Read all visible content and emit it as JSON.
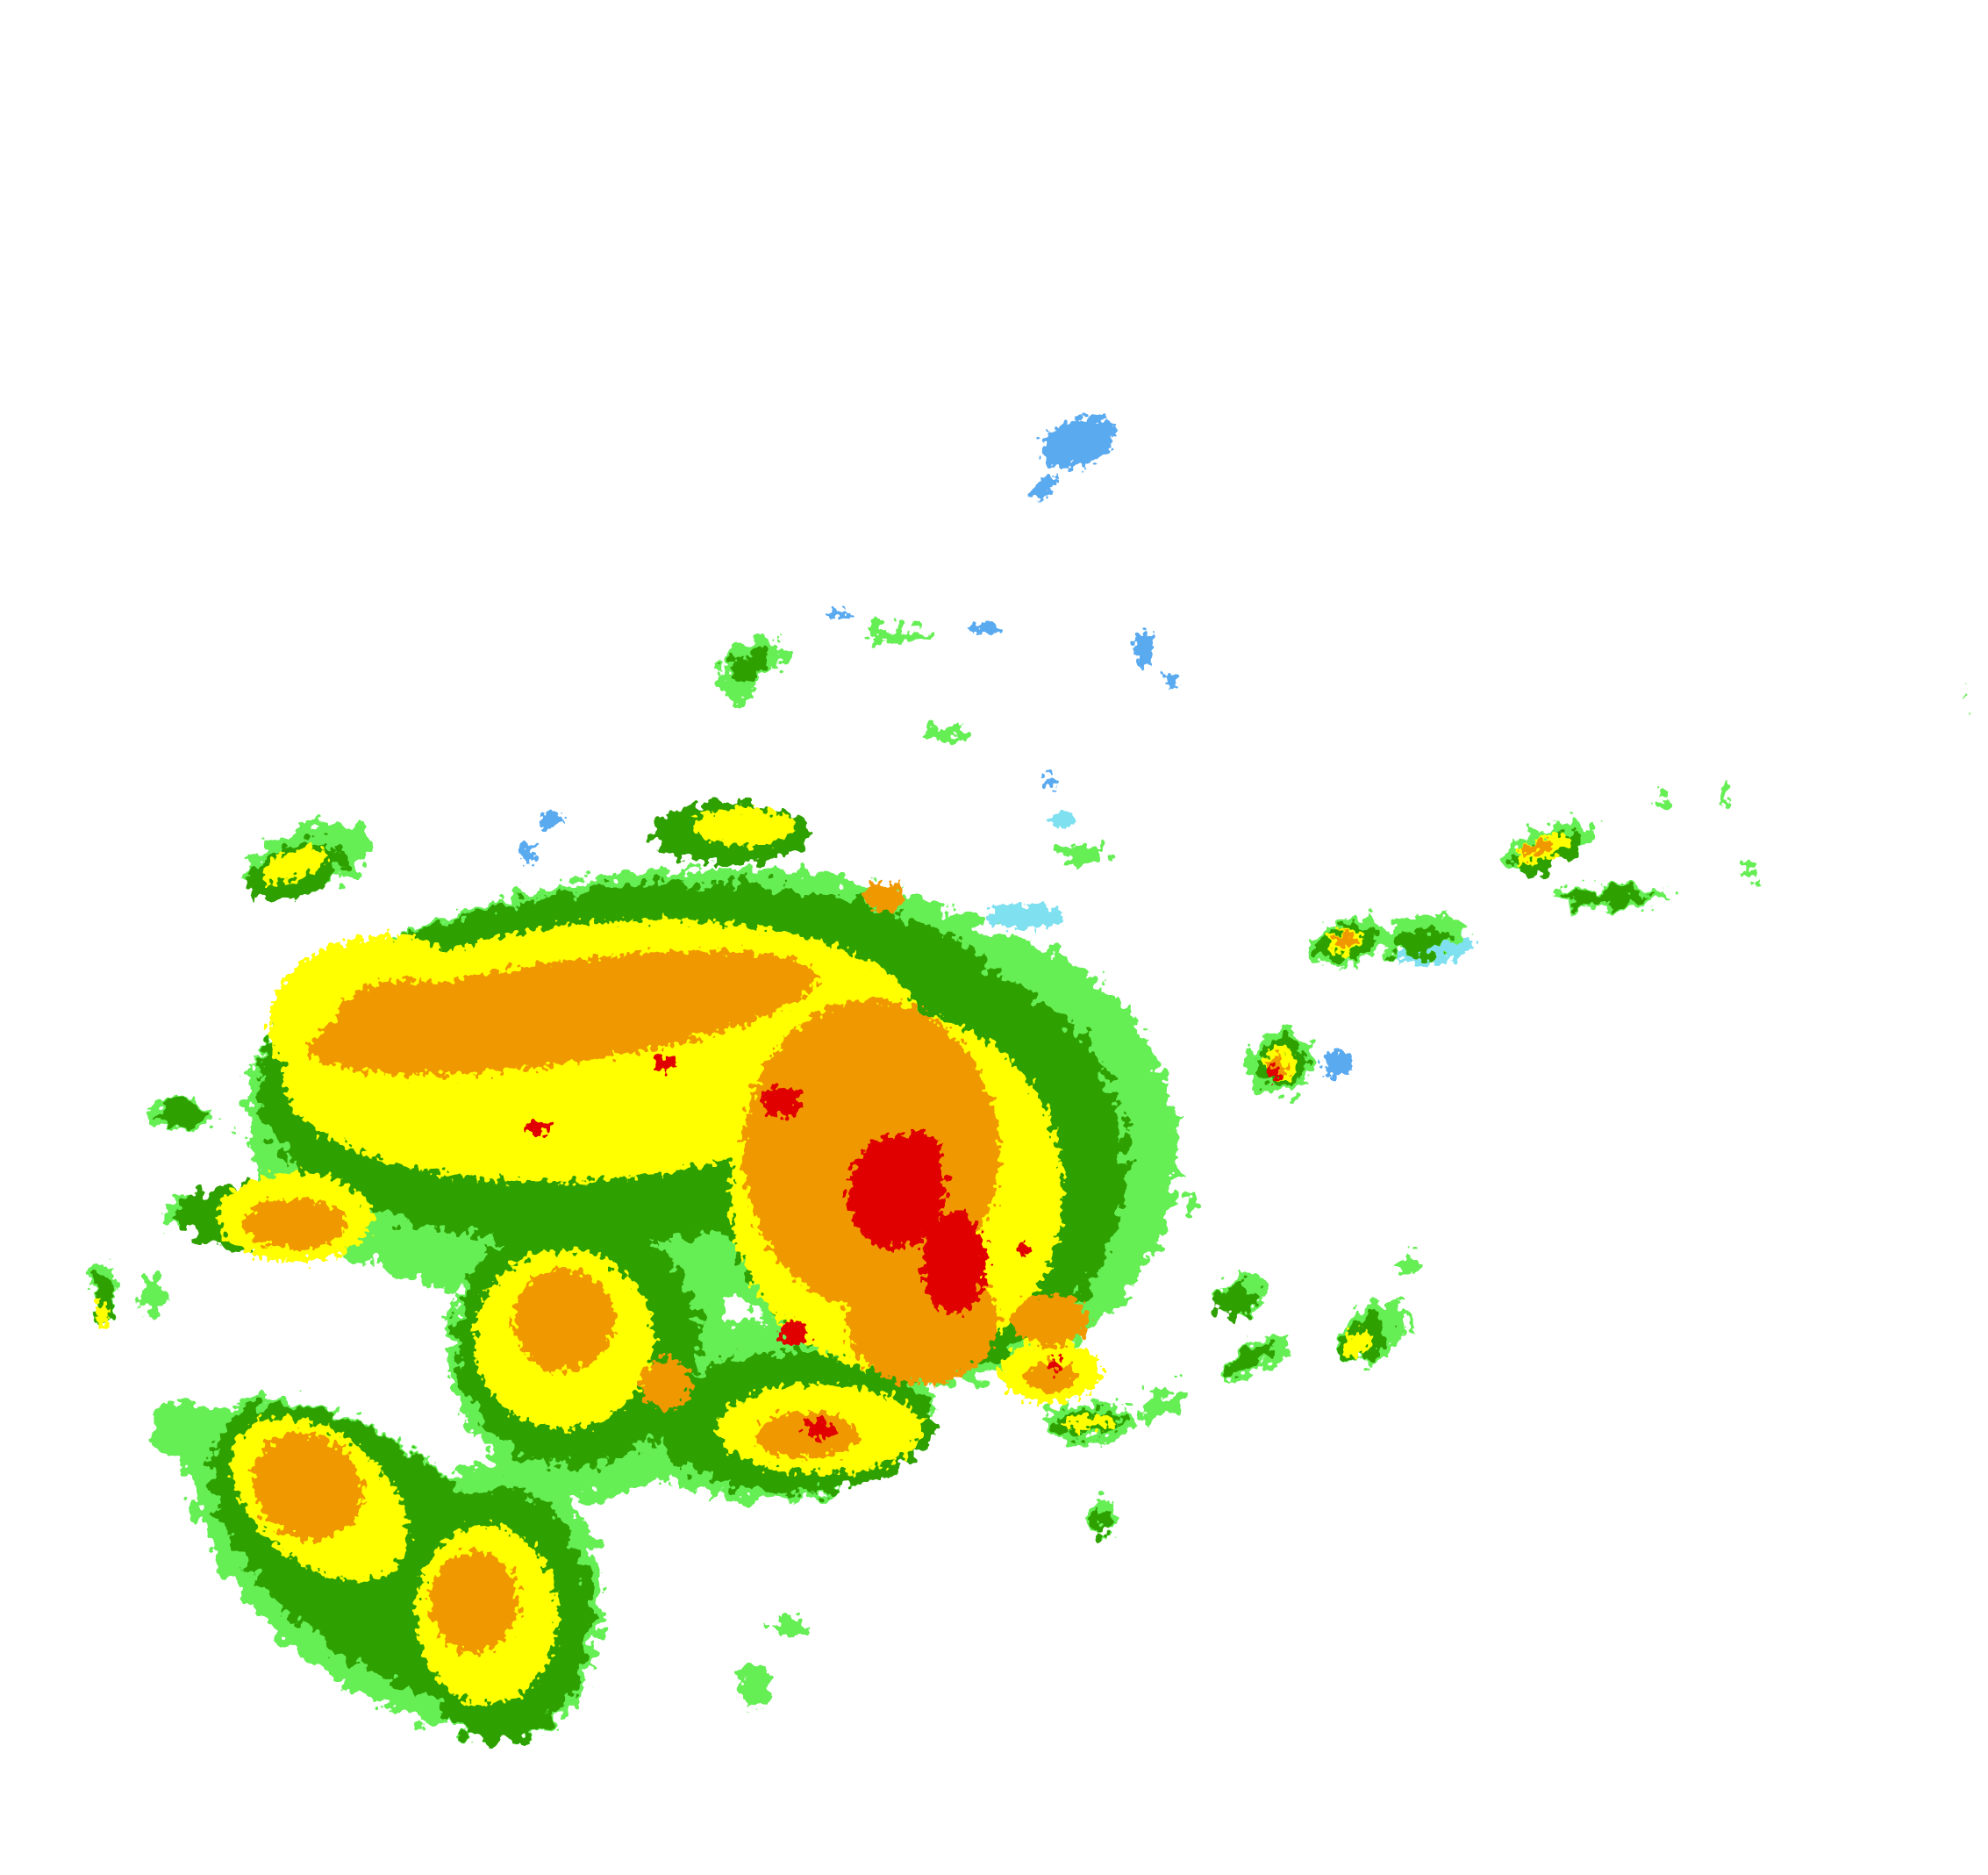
{
  "radar": {
    "colors": {
      "light_blue": "#5aaaf0",
      "cyan": "#7fe0f0",
      "light_green": "#66ee55",
      "green": "#2ea100",
      "yellow": "#ffff00",
      "orange": "#f09800",
      "red": "#e00000",
      "background": "#ffffff"
    }
  }
}
